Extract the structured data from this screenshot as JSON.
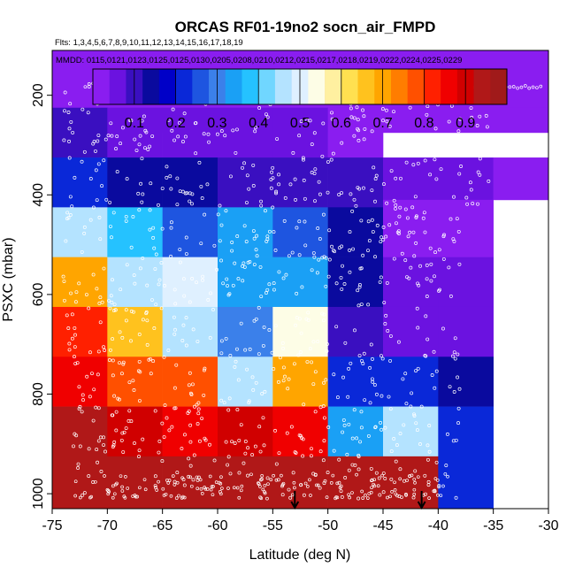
{
  "chart_data": {
    "type": "heatmap",
    "title": "ORCAS RF01-19no2 socn_air_FMPD",
    "flights_label": "Flts: 1,3,4,5,6,7,8,9,10,11,12,13,14,15,16,17,18,19",
    "dates_label": "MMDD: 0115,0121,0123,0125,0125,0130,0205,0208,0210,0212,0215,0217,0218,0219,0222,0224,0225,0229",
    "xlabel": "Latitude (deg N)",
    "ylabel": "PSXC (mbar)",
    "xlim": [
      -75,
      -30
    ],
    "ylim": [
      1030,
      110
    ],
    "x_ticks": [
      -75,
      -70,
      -65,
      -60,
      -55,
      -50,
      -45,
      -40,
      -35,
      -30
    ],
    "y_ticks": [
      200,
      400,
      600,
      800,
      1000
    ],
    "colorbar": {
      "range": [
        0,
        1
      ],
      "ticks": [
        0.1,
        0.2,
        0.3,
        0.4,
        0.5,
        0.6,
        0.7,
        0.8,
        0.9
      ],
      "colors": [
        "#8a1df0",
        "#6b12e0",
        "#3a0fc0",
        "#0a0a9e",
        "#0000c8",
        "#0a28d8",
        "#1e55e0",
        "#3b80ea",
        "#1aa0f5",
        "#25c2ff",
        "#70d6ff",
        "#b4e3ff",
        "#dff0ff",
        "#fdfde6",
        "#fff0a0",
        "#ffe050",
        "#ffc21e",
        "#ffa500",
        "#ff7d00",
        "#ff5000",
        "#ff2000",
        "#f00000",
        "#d00000",
        "#b01818",
        "#a01a1a"
      ]
    },
    "lat_bins": [
      -75,
      -72.5,
      -67.5,
      -62.5,
      -57.5,
      -52.5,
      -47.5,
      -42.5,
      -37.5,
      -32.5
    ],
    "pres_bins": [
      125,
      225,
      275,
      375,
      425,
      475,
      575,
      625,
      725,
      775,
      875,
      925,
      1025
    ],
    "cells": [
      {
        "lat0": -75,
        "lat1": -30,
        "p0": 110,
        "p1": 225,
        "v": 0.03
      },
      {
        "lat0": -75,
        "lat1": -72.5,
        "p0": 225,
        "p1": 410,
        "v": 0.03
      },
      {
        "lat0": -72.5,
        "lat1": -30,
        "p0": 225,
        "p1": 275,
        "v": 0.03
      },
      {
        "lat0": -75,
        "lat1": -70,
        "p0": 225,
        "p1": 325,
        "v": 0.08
      },
      {
        "lat0": -70,
        "lat1": -65,
        "p0": 225,
        "p1": 325,
        "v": 0.05
      },
      {
        "lat0": -65,
        "lat1": -60,
        "p0": 225,
        "p1": 325,
        "v": 0.04
      },
      {
        "lat0": -60,
        "lat1": -55,
        "p0": 225,
        "p1": 325,
        "v": 0.05
      },
      {
        "lat0": -55,
        "lat1": -50,
        "p0": 225,
        "p1": 325,
        "v": 0.04
      },
      {
        "lat0": -50,
        "lat1": -45,
        "p0": 225,
        "p1": 325,
        "v": 0.03
      },
      {
        "lat0": -75,
        "lat1": -70,
        "p0": 325,
        "p1": 425,
        "v": 0.22
      },
      {
        "lat0": -70,
        "lat1": -65,
        "p0": 325,
        "p1": 425,
        "v": 0.14
      },
      {
        "lat0": -65,
        "lat1": -60,
        "p0": 325,
        "p1": 425,
        "v": 0.13
      },
      {
        "lat0": -60,
        "lat1": -55,
        "p0": 325,
        "p1": 425,
        "v": 0.1
      },
      {
        "lat0": -55,
        "lat1": -50,
        "p0": 325,
        "p1": 425,
        "v": 0.11
      },
      {
        "lat0": -50,
        "lat1": -45,
        "p0": 325,
        "p1": 425,
        "v": 0.1
      },
      {
        "lat0": -45,
        "lat1": -35,
        "p0": 325,
        "p1": 410,
        "v": 0.05
      },
      {
        "lat0": -35,
        "lat1": -30,
        "p0": 325,
        "p1": 410,
        "v": 0.03
      },
      {
        "lat0": -75,
        "lat1": -70,
        "p0": 425,
        "p1": 525,
        "v": 0.45
      },
      {
        "lat0": -70,
        "lat1": -65,
        "p0": 425,
        "p1": 525,
        "v": 0.36
      },
      {
        "lat0": -65,
        "lat1": -60,
        "p0": 425,
        "p1": 525,
        "v": 0.24
      },
      {
        "lat0": -60,
        "lat1": -55,
        "p0": 425,
        "p1": 525,
        "v": 0.35
      },
      {
        "lat0": -55,
        "lat1": -50,
        "p0": 425,
        "p1": 525,
        "v": 0.25
      },
      {
        "lat0": -50,
        "lat1": -45,
        "p0": 425,
        "p1": 525,
        "v": 0.12
      },
      {
        "lat0": -45,
        "lat1": -35,
        "p0": 410,
        "p1": 525,
        "v": 0.03
      },
      {
        "lat0": -75,
        "lat1": -70,
        "p0": 525,
        "p1": 625,
        "v": 0.71
      },
      {
        "lat0": -70,
        "lat1": -65,
        "p0": 525,
        "p1": 625,
        "v": 0.45
      },
      {
        "lat0": -65,
        "lat1": -60,
        "p0": 525,
        "p1": 625,
        "v": 0.48
      },
      {
        "lat0": -60,
        "lat1": -55,
        "p0": 525,
        "p1": 625,
        "v": 0.33
      },
      {
        "lat0": -55,
        "lat1": -50,
        "p0": 525,
        "p1": 625,
        "v": 0.34
      },
      {
        "lat0": -50,
        "lat1": -45,
        "p0": 525,
        "p1": 625,
        "v": 0.12
      },
      {
        "lat0": -45,
        "lat1": -40,
        "p0": 525,
        "p1": 625,
        "v": 0.06
      },
      {
        "lat0": -40,
        "lat1": -35,
        "p0": 525,
        "p1": 625,
        "v": 0.05
      },
      {
        "lat0": -75,
        "lat1": -70,
        "p0": 625,
        "p1": 725,
        "v": 0.82
      },
      {
        "lat0": -70,
        "lat1": -65,
        "p0": 625,
        "p1": 725,
        "v": 0.64
      },
      {
        "lat0": -65,
        "lat1": -60,
        "p0": 625,
        "p1": 725,
        "v": 0.45
      },
      {
        "lat0": -60,
        "lat1": -55,
        "p0": 625,
        "p1": 725,
        "v": 0.3
      },
      {
        "lat0": -55,
        "lat1": -50,
        "p0": 625,
        "p1": 725,
        "v": 0.52
      },
      {
        "lat0": -50,
        "lat1": -45,
        "p0": 625,
        "p1": 725,
        "v": 0.1
      },
      {
        "lat0": -45,
        "lat1": -40,
        "p0": 625,
        "p1": 725,
        "v": 0.05
      },
      {
        "lat0": -40,
        "lat1": -35,
        "p0": 625,
        "p1": 725,
        "v": 0.06
      },
      {
        "lat0": -75,
        "lat1": -70,
        "p0": 725,
        "p1": 825,
        "v": 0.86
      },
      {
        "lat0": -70,
        "lat1": -65,
        "p0": 725,
        "p1": 825,
        "v": 0.78
      },
      {
        "lat0": -65,
        "lat1": -60,
        "p0": 725,
        "p1": 825,
        "v": 0.76
      },
      {
        "lat0": -60,
        "lat1": -55,
        "p0": 725,
        "p1": 825,
        "v": 0.45
      },
      {
        "lat0": -55,
        "lat1": -50,
        "p0": 725,
        "p1": 825,
        "v": 0.7
      },
      {
        "lat0": -50,
        "lat1": -45,
        "p0": 725,
        "p1": 825,
        "v": 0.22
      },
      {
        "lat0": -45,
        "lat1": -40,
        "p0": 725,
        "p1": 825,
        "v": 0.2
      },
      {
        "lat0": -40,
        "lat1": -35,
        "p0": 725,
        "p1": 825,
        "v": 0.15
      },
      {
        "lat0": -75,
        "lat1": -70,
        "p0": 825,
        "p1": 925,
        "v": 0.93
      },
      {
        "lat0": -70,
        "lat1": -65,
        "p0": 825,
        "p1": 925,
        "v": 0.88
      },
      {
        "lat0": -65,
        "lat1": -60,
        "p0": 825,
        "p1": 925,
        "v": 0.86
      },
      {
        "lat0": -60,
        "lat1": -55,
        "p0": 825,
        "p1": 925,
        "v": 0.88
      },
      {
        "lat0": -55,
        "lat1": -50,
        "p0": 825,
        "p1": 925,
        "v": 0.86
      },
      {
        "lat0": -50,
        "lat1": -45,
        "p0": 825,
        "p1": 925,
        "v": 0.32
      },
      {
        "lat0": -45,
        "lat1": -40,
        "p0": 825,
        "p1": 925,
        "v": 0.45
      },
      {
        "lat0": -40,
        "lat1": -35,
        "p0": 825,
        "p1": 925,
        "v": 0.22
      },
      {
        "lat0": -75,
        "lat1": -70,
        "p0": 925,
        "p1": 1030,
        "v": 0.94
      },
      {
        "lat0": -70,
        "lat1": -65,
        "p0": 925,
        "p1": 1030,
        "v": 0.94
      },
      {
        "lat0": -65,
        "lat1": -60,
        "p0": 925,
        "p1": 1030,
        "v": 0.93
      },
      {
        "lat0": -60,
        "lat1": -55,
        "p0": 925,
        "p1": 1030,
        "v": 0.94
      },
      {
        "lat0": -55,
        "lat1": -50,
        "p0": 925,
        "p1": 1030,
        "v": 0.94
      },
      {
        "lat0": -50,
        "lat1": -45,
        "p0": 925,
        "p1": 1030,
        "v": 0.93
      },
      {
        "lat0": -45,
        "lat1": -40,
        "p0": 925,
        "p1": 1030,
        "v": 0.92
      },
      {
        "lat0": -40,
        "lat1": -35,
        "p0": 925,
        "p1": 1030,
        "v": 0.22
      }
    ],
    "arrows_lat": [
      -53,
      -41.5
    ],
    "arrow_color": "#000000",
    "marker_color": "#ffffff"
  }
}
